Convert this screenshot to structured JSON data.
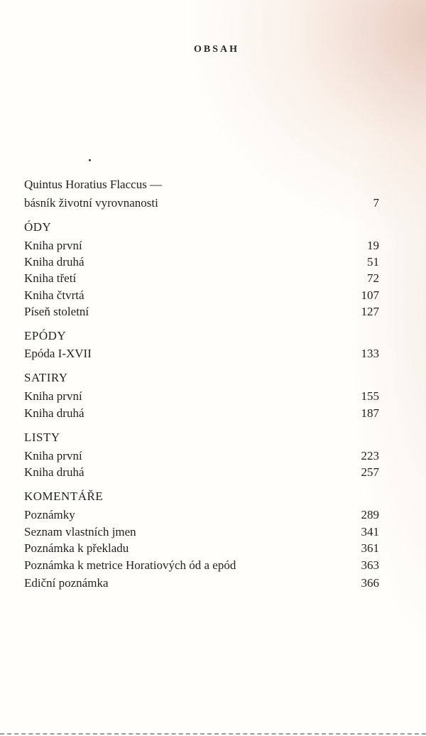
{
  "title": "OBSAH",
  "entries": [
    {
      "label": "Quintus Horatius Flaccus —",
      "page": ""
    },
    {
      "label": "básník životní vyrovnanosti",
      "page": "7"
    },
    {
      "label": "ÓDY",
      "page": ""
    },
    {
      "label": "Kniha první",
      "page": "19"
    },
    {
      "label": "Kniha druhá",
      "page": "51"
    },
    {
      "label": "Kniha třetí",
      "page": "72"
    },
    {
      "label": "Kniha čtvrtá",
      "page": "107"
    },
    {
      "label": "Píseň stoletní",
      "page": "127"
    },
    {
      "label": "EPÓDY",
      "page": ""
    },
    {
      "label": "Epóda I-XVII",
      "page": "133"
    },
    {
      "label": "SATIRY",
      "page": ""
    },
    {
      "label": "Kniha první",
      "page": "155"
    },
    {
      "label": "Kniha druhá",
      "page": "187"
    },
    {
      "label": "LISTY",
      "page": ""
    },
    {
      "label": "Kniha první",
      "page": "223"
    },
    {
      "label": "Kniha druhá",
      "page": "257"
    },
    {
      "label": "KOMENTÁŘE",
      "page": ""
    },
    {
      "label": "Poznámky",
      "page": "289"
    },
    {
      "label": "Seznam vlastních jmen",
      "page": "341"
    },
    {
      "label": "Poznámka k překladu",
      "page": "361"
    },
    {
      "label": "Poznámka k metrice Horatiových ód a epód",
      "page": "363"
    },
    {
      "label": "Ediční poznámka",
      "page": "366"
    }
  ]
}
